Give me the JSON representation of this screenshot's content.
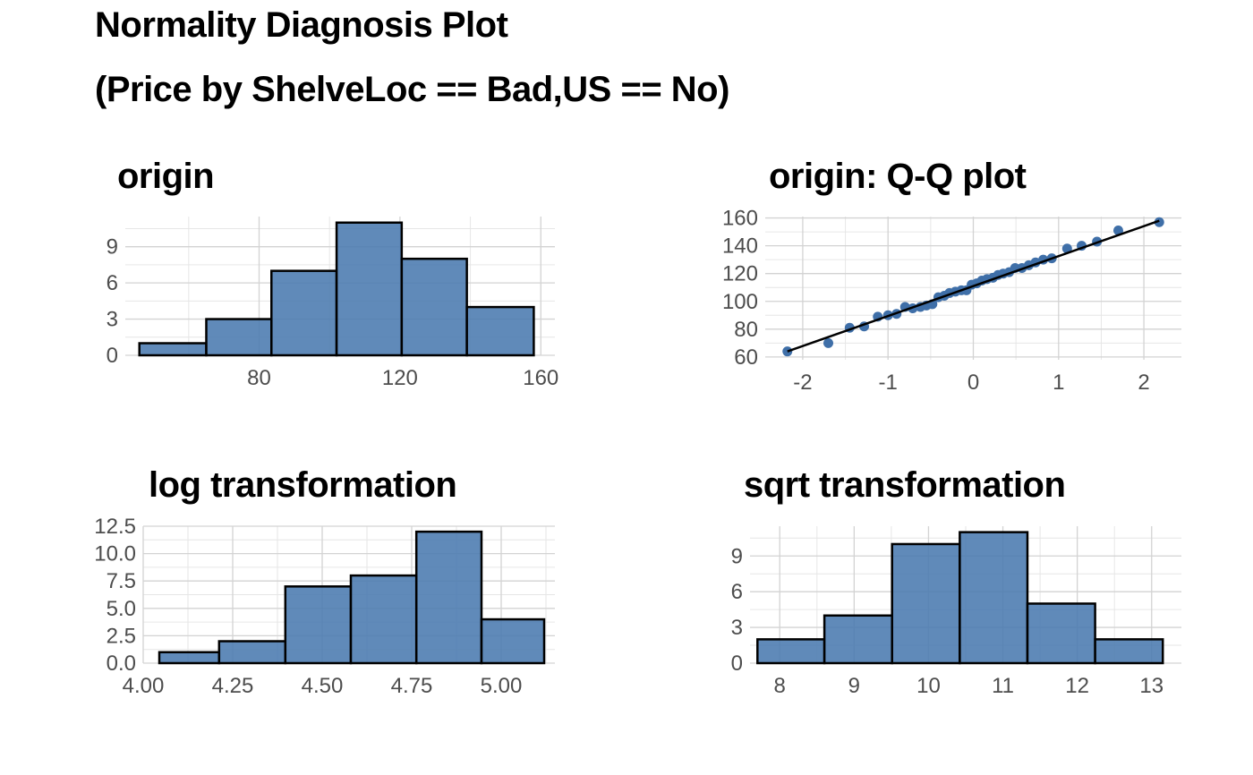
{
  "header": {
    "title_line1": "Normality Diagnosis Plot",
    "title_line2": "(Price by ShelveLoc == Bad,US == No)"
  },
  "chart_data": [
    {
      "id": "origin",
      "type": "bar",
      "title": "origin",
      "xlabel": "",
      "ylabel": "",
      "bins": [
        {
          "x0": 46,
          "x1": 65,
          "count": 1
        },
        {
          "x0": 65,
          "x1": 83.5,
          "count": 3
        },
        {
          "x0": 83.5,
          "x1": 102,
          "count": 7
        },
        {
          "x0": 102,
          "x1": 120.5,
          "count": 11
        },
        {
          "x0": 120.5,
          "x1": 139,
          "count": 8
        },
        {
          "x0": 139,
          "x1": 158,
          "count": 4
        }
      ],
      "xlim": [
        42,
        164
      ],
      "ylim": [
        0,
        11.5
      ],
      "x_ticks": [
        80,
        120,
        160
      ],
      "x_tick_labels": [
        "80",
        "120",
        "160"
      ],
      "y_ticks": [
        0,
        3,
        6,
        9
      ],
      "y_tick_labels": [
        "0",
        "3",
        "6",
        "9"
      ]
    },
    {
      "id": "qq",
      "type": "scatter",
      "title": "origin: Q-Q plot",
      "xlabel": "",
      "ylabel": "",
      "points": [
        [
          -2.18,
          64
        ],
        [
          -1.7,
          70
        ],
        [
          -1.45,
          81
        ],
        [
          -1.28,
          82
        ],
        [
          -1.12,
          89
        ],
        [
          -1.0,
          90
        ],
        [
          -0.9,
          91
        ],
        [
          -0.8,
          96
        ],
        [
          -0.71,
          95
        ],
        [
          -0.62,
          96
        ],
        [
          -0.55,
          97
        ],
        [
          -0.48,
          98
        ],
        [
          -0.41,
          103
        ],
        [
          -0.34,
          104
        ],
        [
          -0.28,
          106
        ],
        [
          -0.21,
          107
        ],
        [
          -0.14,
          108
        ],
        [
          -0.08,
          108
        ],
        [
          -0.02,
          112
        ],
        [
          0.04,
          113
        ],
        [
          0.1,
          115
        ],
        [
          0.16,
          116
        ],
        [
          0.23,
          117
        ],
        [
          0.29,
          119
        ],
        [
          0.35,
          120
        ],
        [
          0.42,
          121
        ],
        [
          0.49,
          124
        ],
        [
          0.57,
          124
        ],
        [
          0.65,
          126
        ],
        [
          0.73,
          128
        ],
        [
          0.82,
          130
        ],
        [
          0.92,
          131
        ],
        [
          1.1,
          138
        ],
        [
          1.27,
          140
        ],
        [
          1.45,
          143
        ],
        [
          1.7,
          151
        ],
        [
          2.18,
          157
        ]
      ],
      "line": {
        "x0": -2.18,
        "y0": 64,
        "x1": 2.18,
        "y1": 158
      },
      "xlim": [
        -2.44,
        2.44
      ],
      "ylim": [
        58,
        161
      ],
      "x_ticks": [
        -2,
        -1,
        0,
        1,
        2
      ],
      "x_tick_labels": [
        "-2",
        "-1",
        "0",
        "1",
        "2"
      ],
      "y_ticks": [
        60,
        80,
        100,
        120,
        140,
        160
      ],
      "y_tick_labels": [
        "60",
        "80",
        "100",
        "120",
        "140",
        "160"
      ]
    },
    {
      "id": "log",
      "type": "bar",
      "title": "log transformation",
      "xlabel": "",
      "ylabel": "",
      "bins": [
        {
          "x0": 4.045,
          "x1": 4.212,
          "count": 1
        },
        {
          "x0": 4.212,
          "x1": 4.397,
          "count": 2
        },
        {
          "x0": 4.397,
          "x1": 4.58,
          "count": 7
        },
        {
          "x0": 4.58,
          "x1": 4.763,
          "count": 8
        },
        {
          "x0": 4.763,
          "x1": 4.945,
          "count": 12
        },
        {
          "x0": 4.945,
          "x1": 5.12,
          "count": 4
        }
      ],
      "xlim": [
        4.0,
        5.15
      ],
      "ylim": [
        0,
        12.5
      ],
      "x_ticks": [
        4.0,
        4.25,
        4.5,
        4.75,
        5.0
      ],
      "x_tick_labels": [
        "4.00",
        "4.25",
        "4.50",
        "4.75",
        "5.00"
      ],
      "y_ticks": [
        0,
        2.5,
        5,
        7.5,
        10,
        12.5
      ],
      "y_tick_labels": [
        "0.0",
        "2.5",
        "5.0",
        "7.5",
        "10.0",
        "12.5"
      ]
    },
    {
      "id": "sqrt",
      "type": "bar",
      "title": "sqrt transformation",
      "xlabel": "",
      "ylabel": "",
      "bins": [
        {
          "x0": 7.7,
          "x1": 8.6,
          "count": 2
        },
        {
          "x0": 8.6,
          "x1": 9.51,
          "count": 4
        },
        {
          "x0": 9.51,
          "x1": 10.42,
          "count": 10
        },
        {
          "x0": 10.42,
          "x1": 11.33,
          "count": 11
        },
        {
          "x0": 11.33,
          "x1": 12.24,
          "count": 5
        },
        {
          "x0": 12.24,
          "x1": 13.15,
          "count": 2
        }
      ],
      "xlim": [
        7.6,
        13.4
      ],
      "ylim": [
        0,
        11.5
      ],
      "x_ticks": [
        8,
        9,
        10,
        11,
        12,
        13
      ],
      "x_tick_labels": [
        "8",
        "9",
        "10",
        "11",
        "12",
        "13"
      ],
      "y_ticks": [
        0,
        3,
        6,
        9
      ],
      "y_tick_labels": [
        "0",
        "3",
        "6",
        "9"
      ]
    }
  ]
}
